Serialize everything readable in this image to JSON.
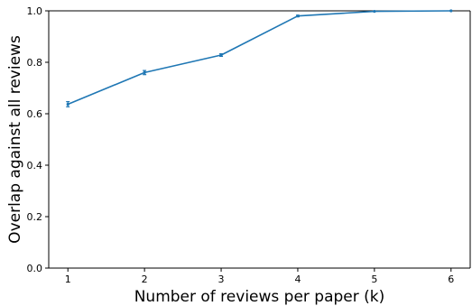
{
  "chart_data": {
    "type": "line",
    "title": "",
    "xlabel": "Number of reviews per paper (k)",
    "ylabel": "Overlap against all reviews",
    "xlim": [
      0.75,
      6.25
    ],
    "ylim": [
      0.0,
      1.0
    ],
    "xticks": [
      1,
      2,
      3,
      4,
      5,
      6
    ],
    "yticks": [
      0.0,
      0.2,
      0.4,
      0.6,
      0.8,
      1.0
    ],
    "xtick_labels": [
      "1",
      "2",
      "3",
      "4",
      "5",
      "6"
    ],
    "ytick_labels": [
      "0.0",
      "0.2",
      "0.4",
      "0.6",
      "0.8",
      "1.0"
    ],
    "grid": false,
    "legend": "none",
    "series": [
      {
        "color": "#1f77b4",
        "x": [
          1,
          2,
          3,
          4,
          5,
          6
        ],
        "y": [
          0.637,
          0.76,
          0.828,
          0.98,
          0.998,
          1.0
        ],
        "error": [
          0.01,
          0.008,
          0.005,
          0.003,
          0.0,
          0.0
        ]
      }
    ]
  }
}
